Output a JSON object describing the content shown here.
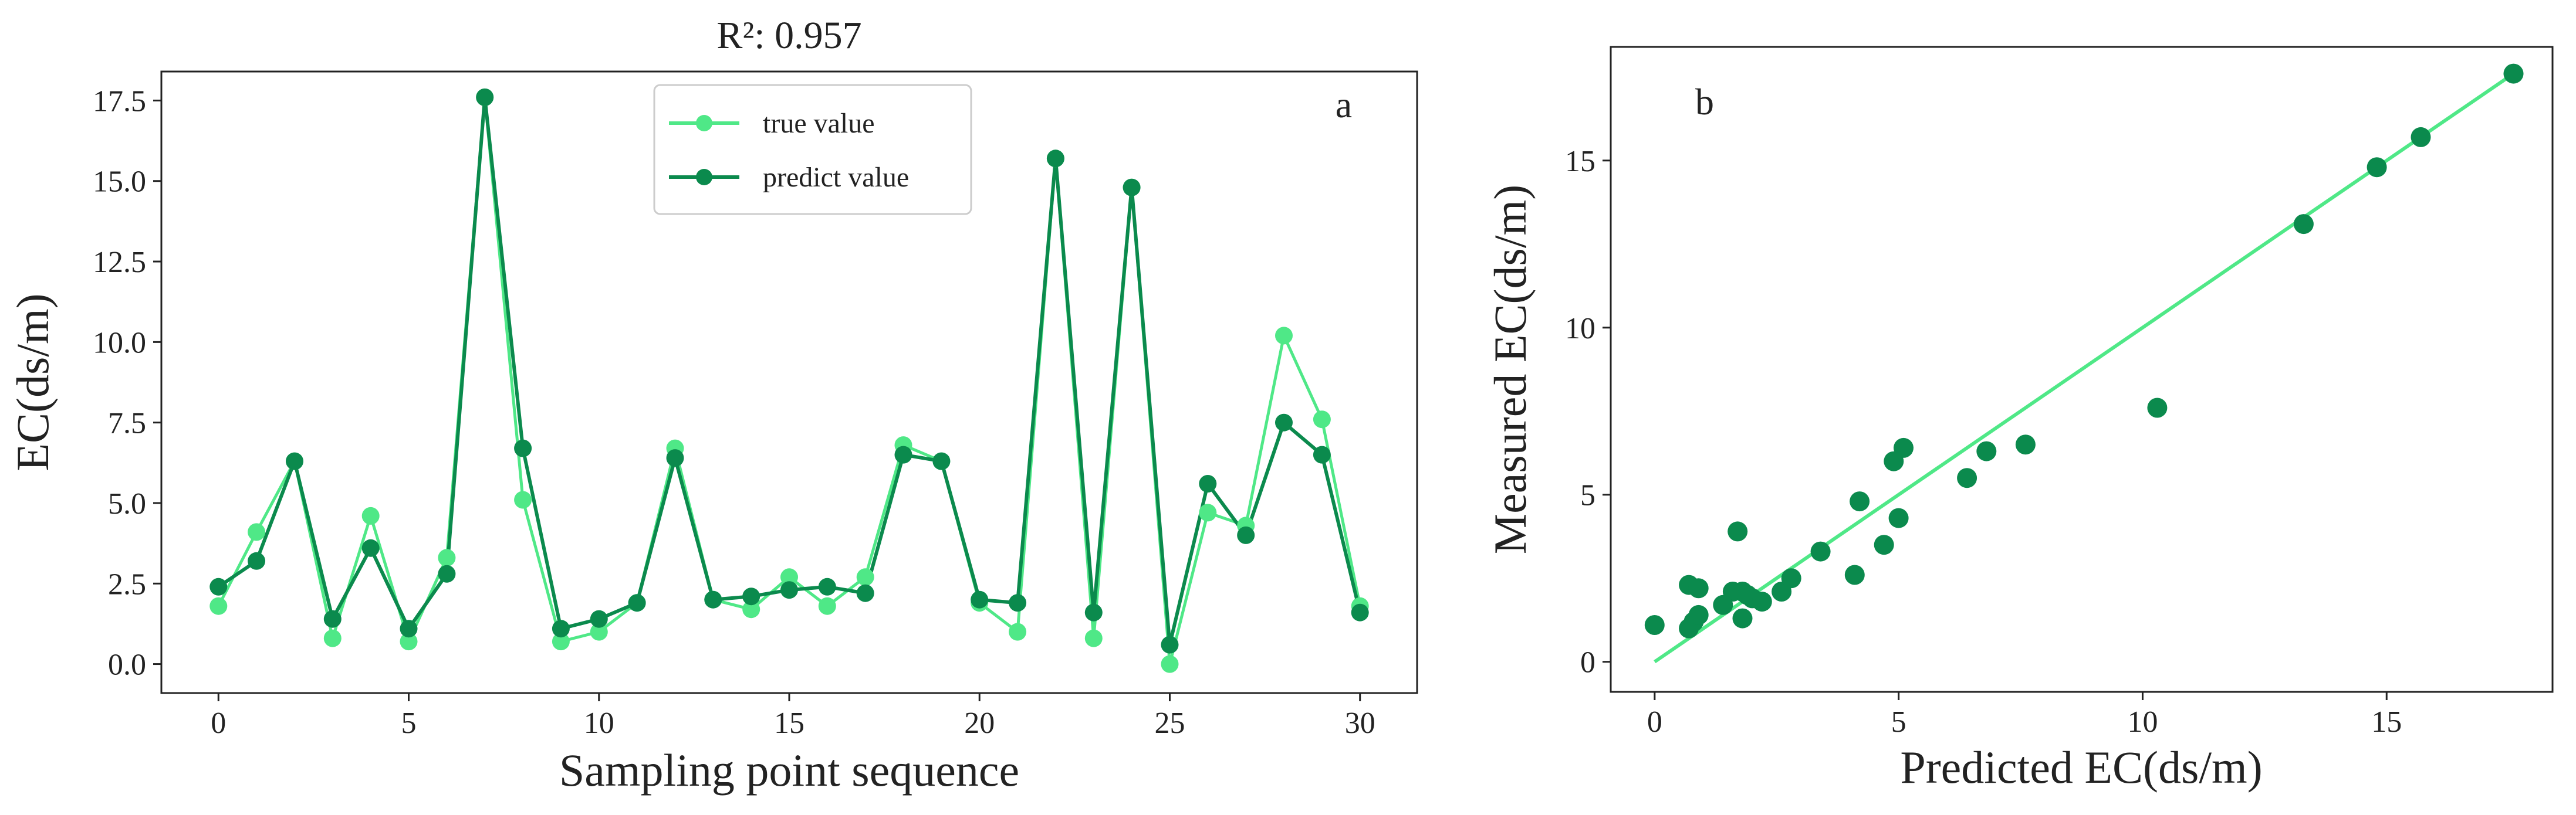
{
  "chart_data": [
    {
      "id": "a",
      "type": "line",
      "title": "R²: 0.957",
      "panel_label": "a",
      "xlabel": "Sampling point sequence",
      "ylabel": "EC(ds/m)",
      "xlim": [
        -1.5,
        31.5
      ],
      "ylim": [
        -0.9,
        18.4
      ],
      "xticks": [
        0,
        5,
        10,
        15,
        20,
        25,
        30
      ],
      "xtick_labels": [
        "0",
        "5",
        "10",
        "15",
        "20",
        "25",
        "30"
      ],
      "yticks": [
        0,
        2.5,
        5,
        7.5,
        10,
        12.5,
        15,
        17.5
      ],
      "ytick_labels": [
        "0.0",
        "2.5",
        "5.0",
        "7.5",
        "10.0",
        "12.5",
        "15.0",
        "17.5"
      ],
      "legend_position": "top-center",
      "x": [
        0,
        1,
        2,
        3,
        4,
        5,
        6,
        7,
        8,
        9,
        10,
        11,
        12,
        13,
        14,
        15,
        16,
        17,
        18,
        19,
        20,
        21,
        22,
        23,
        24,
        25,
        26,
        27,
        28,
        29,
        30
      ],
      "series": [
        {
          "name": "true value",
          "color": "#4fe887",
          "values": [
            1.8,
            4.1,
            6.3,
            0.8,
            4.6,
            0.7,
            3.3,
            17.6,
            5.1,
            0.7,
            1.0,
            1.9,
            6.7,
            2.0,
            1.7,
            2.7,
            1.8,
            2.7,
            6.8,
            6.3,
            1.9,
            1.0,
            15.7,
            0.8,
            14.8,
            0.0,
            4.7,
            4.3,
            10.2,
            7.6,
            1.8
          ]
        },
        {
          "name": "predict value",
          "color": "#0b8a4d",
          "values": [
            2.4,
            3.2,
            6.3,
            1.4,
            3.6,
            1.1,
            2.8,
            17.6,
            6.7,
            1.1,
            1.4,
            1.9,
            6.4,
            2.0,
            2.1,
            2.3,
            2.4,
            2.2,
            6.5,
            6.3,
            2.0,
            1.9,
            15.7,
            1.6,
            14.8,
            0.6,
            5.6,
            4.0,
            7.5,
            6.5,
            1.6
          ]
        }
      ]
    },
    {
      "id": "b",
      "type": "scatter",
      "title": "",
      "panel_label": "b",
      "xlabel": "Predicted EC(ds/m)",
      "ylabel": "Measured EC(ds/m)",
      "xlim": [
        -0.9,
        18.4
      ],
      "ylim": [
        -0.9,
        18.4
      ],
      "xticks": [
        0,
        5,
        10,
        15
      ],
      "xtick_labels": [
        "0",
        "5",
        "10",
        "15"
      ],
      "yticks": [
        0,
        5,
        10,
        15
      ],
      "ytick_labels": [
        "0",
        "5",
        "10",
        "15"
      ],
      "point_color": "#0b8a4d",
      "fit_line_color": "#4fe887",
      "fit_line": {
        "x": [
          0,
          17.6
        ],
        "y": [
          0.0,
          17.6
        ]
      },
      "points": {
        "x": [
          0.0,
          0.7,
          0.8,
          0.9,
          0.7,
          0.9,
          1.7,
          1.8,
          1.8,
          2.0,
          1.6,
          2.6,
          2.8,
          3.4,
          4.1,
          4.2,
          4.7,
          4.9,
          5.0,
          5.1,
          6.4,
          6.8,
          7.6,
          10.3,
          13.3,
          14.8,
          15.7,
          17.6,
          1.9,
          2.2,
          1.4
        ],
        "y": [
          1.1,
          1.0,
          1.2,
          1.4,
          2.3,
          2.2,
          3.9,
          1.3,
          2.1,
          1.9,
          2.1,
          2.1,
          2.5,
          3.3,
          2.6,
          4.8,
          3.5,
          6.0,
          4.3,
          6.4,
          5.5,
          6.3,
          6.5,
          7.6,
          13.1,
          14.8,
          15.7,
          17.6,
          2.0,
          1.8,
          1.7
        ]
      }
    }
  ]
}
